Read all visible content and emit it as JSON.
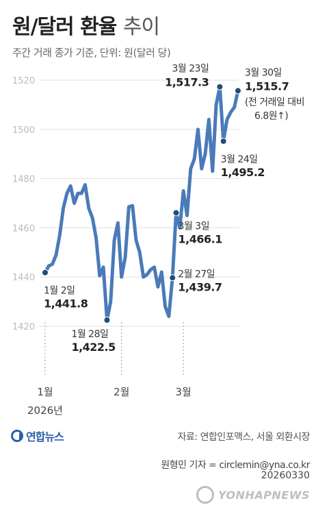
{
  "header": {
    "title_bold": "원/달러 환율",
    "title_light": "추이",
    "subtitle": "주간 거래 종가 기준, 단위: 원(달러 당)"
  },
  "chart_data": {
    "type": "line",
    "title": "원/달러 환율 추이",
    "subtitle": "주간 거래 종가 기준, 단위: 원(달러 당)",
    "color": "#4a7ab8",
    "marker_color": "#1f4e79",
    "ylim": [
      1410,
      1525
    ],
    "yticks": [
      1420,
      1440,
      1460,
      1480,
      1500,
      1520
    ],
    "x_ticks": [
      {
        "label": "1월",
        "index": 0
      },
      {
        "label": "2월",
        "index": 21
      },
      {
        "label": "3월",
        "index": 38
      }
    ],
    "year_label": "2026년",
    "values": [
      1441.8,
      1444.5,
      1445.2,
      1449,
      1457,
      1468,
      1474,
      1477,
      1470,
      1474,
      1474,
      1477.5,
      1468,
      1464,
      1456,
      1440.5,
      1444,
      1422.5,
      1430,
      1455,
      1462,
      1440,
      1448,
      1468.5,
      1469,
      1455,
      1450,
      1440,
      1441,
      1443,
      1444,
      1436,
      1442,
      1428,
      1424,
      1439.7,
      1466.1,
      1460,
      1475,
      1465,
      1484,
      1488,
      1500,
      1484,
      1490,
      1504,
      1483,
      1510,
      1517.3,
      1495.2,
      1504,
      1507,
      1509,
      1515.7
    ],
    "annotations": [
      {
        "index": 0,
        "line1": "1월 2일",
        "value": "1,441.8"
      },
      {
        "index": 17,
        "line1": "1월 28일",
        "value": "1,422.5"
      },
      {
        "index": 35,
        "line1": "2월 27일",
        "value": "1,439.7"
      },
      {
        "index": 36,
        "line1": "3월 3일",
        "value": "1,466.1"
      },
      {
        "index": 48,
        "line1": "3월 23일",
        "value": "1,517.3"
      },
      {
        "index": 49,
        "line1": "3월 24일",
        "value": "1,495.2"
      },
      {
        "index": 53,
        "line1": "3월 30일",
        "value": "1,515.7",
        "note1": "(전 거래일 대비",
        "note2": "6.8원↑)"
      }
    ]
  },
  "footer": {
    "logo": "연합뉴스",
    "source": "자료: 연합인포맥스, 서울 외환시장",
    "reporter": "원형민 기자 = circlemin@yna.co.kr",
    "date_code": "20260330",
    "watermark": "YONHAPNEWS"
  }
}
